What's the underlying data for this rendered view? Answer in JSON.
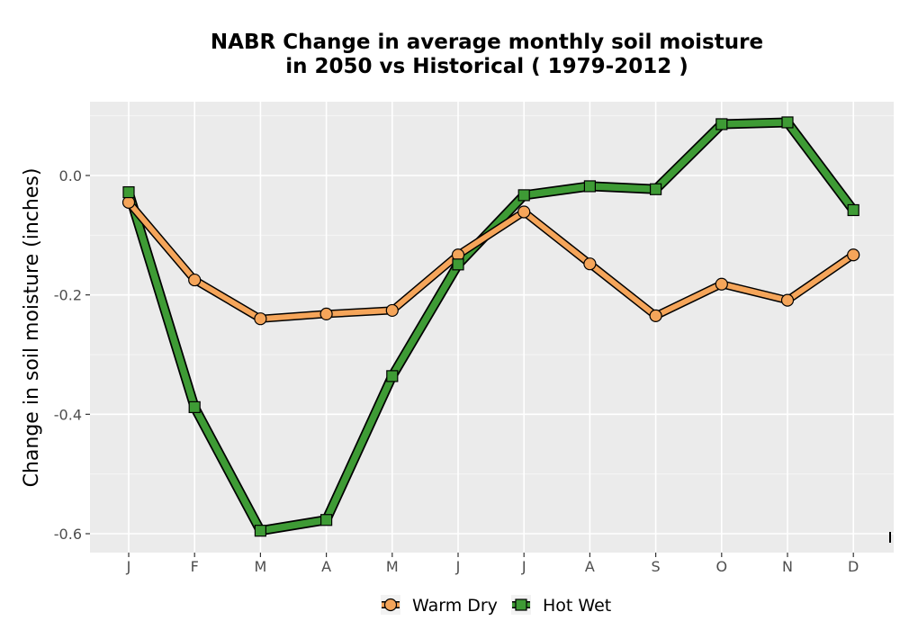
{
  "chart_data": {
    "type": "line",
    "title_line1": "NABR  Change in average monthly soil moisture",
    "title_line2": "in 2050 vs Historical ( 1979-2012 )",
    "xlabel": "",
    "ylabel": "Change in soil moisture (inches)",
    "categories": [
      "J",
      "F",
      "M",
      "A",
      "M",
      "J",
      "J",
      "A",
      "S",
      "O",
      "N",
      "D"
    ],
    "y_ticks": [
      0.0,
      -0.2,
      -0.4,
      -0.6
    ],
    "y_tick_labels": [
      "0.0",
      "-0.2",
      "-0.4",
      "-0.6"
    ],
    "ylim": [
      -0.63,
      0.12
    ],
    "grid": true,
    "legend_position": "bottom",
    "series": [
      {
        "name": "Warm Dry",
        "marker": "circle",
        "color": "#f5a55a",
        "values": [
          -0.045,
          -0.175,
          -0.24,
          -0.232,
          -0.226,
          -0.133,
          -0.061,
          -0.148,
          -0.235,
          -0.182,
          -0.209,
          -0.133
        ]
      },
      {
        "name": "Hot Wet",
        "marker": "square",
        "color": "#3e9b35",
        "values": [
          -0.028,
          -0.388,
          -0.595,
          -0.577,
          -0.336,
          -0.149,
          -0.033,
          -0.018,
          -0.023,
          0.086,
          0.089,
          -0.058
        ]
      }
    ]
  }
}
